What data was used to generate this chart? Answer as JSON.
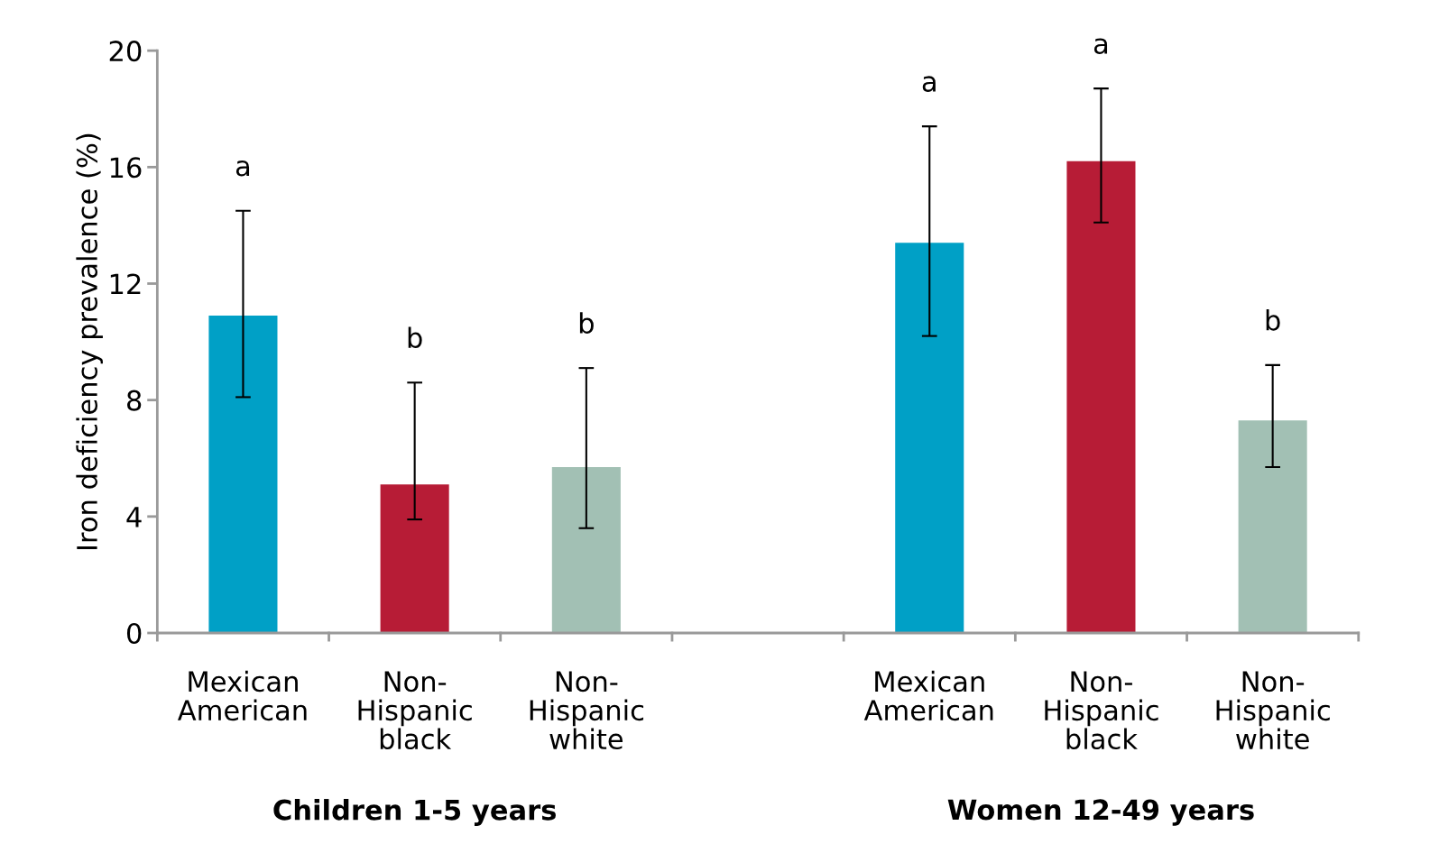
{
  "chart_data": {
    "type": "bar",
    "ylabel": "Iron deficiency prevalence (%)",
    "categories": [
      "Mexican\nAmerican",
      "Non-\nHispanic\nblack",
      "Non-\nHispanic\nwhite",
      null,
      "Mexican\nAmerican",
      "Non-\nHispanic\nblack",
      "Non-\nHispanic\nwhite"
    ],
    "values": [
      10.9,
      5.1,
      5.7,
      null,
      13.4,
      16.2,
      7.3
    ],
    "colors": [
      "#00a0c6",
      "#b71c36",
      "#a2c0b4",
      "#ffffff",
      "#00a0c6",
      "#b71c36",
      "#a2c0b4"
    ],
    "errors": [
      [
        8.1,
        14.5
      ],
      [
        3.9,
        8.6
      ],
      [
        3.6,
        9.1
      ],
      null,
      [
        10.2,
        17.4
      ],
      [
        14.1,
        18.7
      ],
      [
        5.7,
        9.2
      ]
    ],
    "ylim": [
      0,
      20
    ],
    "yticks": [
      0,
      4,
      8,
      12,
      16,
      20
    ],
    "grid": false,
    "legend": false,
    "annotations": [
      "a",
      "b",
      "b",
      "a",
      "a",
      "b",
      "Children 1-5 years",
      "Women 12-49 years"
    ]
  }
}
